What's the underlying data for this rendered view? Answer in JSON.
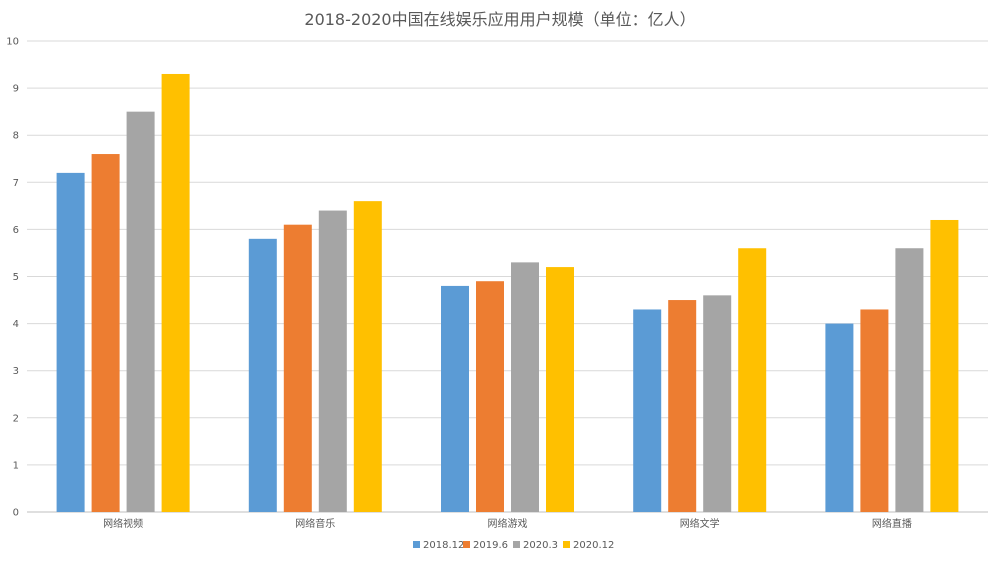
{
  "chart_data": {
    "type": "bar",
    "title": "2018-2020中国在线娱乐应用用户规模（单位：亿人）",
    "categories": [
      "网络视频",
      "网络音乐",
      "网络游戏",
      "网络文学",
      "网络直播"
    ],
    "series": [
      {
        "name": "2018.12",
        "color": "#5B9BD5",
        "values": [
          7.2,
          5.8,
          4.8,
          4.3,
          4.0
        ]
      },
      {
        "name": "2019.6",
        "color": "#ED7D31",
        "values": [
          7.6,
          6.1,
          4.9,
          4.5,
          4.3
        ]
      },
      {
        "name": "2020.3",
        "color": "#A5A5A5",
        "values": [
          8.5,
          6.4,
          5.3,
          4.6,
          5.6
        ]
      },
      {
        "name": "2020.12",
        "color": "#FFC000",
        "values": [
          9.3,
          6.6,
          5.2,
          5.6,
          6.2
        ]
      }
    ],
    "ylim": [
      0,
      10
    ],
    "yticks": [
      0,
      1,
      2,
      3,
      4,
      5,
      6,
      7,
      8,
      9,
      10
    ],
    "grid": true,
    "legend_position": "bottom"
  }
}
